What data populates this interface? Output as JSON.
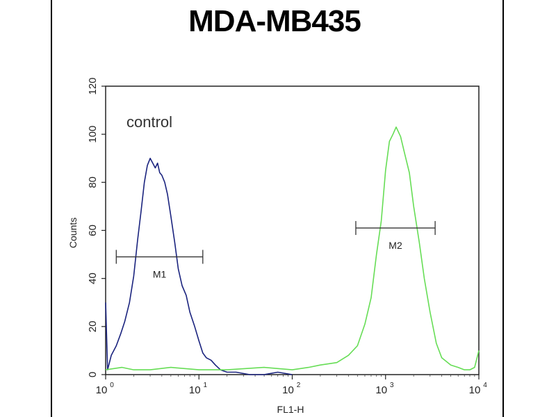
{
  "chart_data": {
    "type": "line",
    "title": "MDA-MB435",
    "xlabel": "FL1-H",
    "ylabel": "Counts",
    "x_scale": "log",
    "xlim": [
      1,
      10000
    ],
    "ylim": [
      0,
      120
    ],
    "x_ticks": [
      {
        "value": 1,
        "base": "10",
        "exp": "0"
      },
      {
        "value": 10,
        "base": "10",
        "exp": "1"
      },
      {
        "value": 100,
        "base": "10",
        "exp": "2"
      },
      {
        "value": 1000,
        "base": "10",
        "exp": "3"
      },
      {
        "value": 10000,
        "base": "10",
        "exp": "4"
      }
    ],
    "y_ticks": [
      "0",
      "20",
      "40",
      "60",
      "80",
      "100",
      "120"
    ],
    "annotation": "control",
    "series": [
      {
        "color": "#1a237e",
        "x": [
          1.0,
          1.05,
          1.15,
          1.3,
          1.45,
          1.6,
          1.8,
          2.0,
          2.2,
          2.4,
          2.6,
          2.8,
          3.0,
          3.2,
          3.4,
          3.6,
          3.8,
          4.0,
          4.3,
          4.6,
          5.0,
          5.5,
          6.0,
          6.6,
          7.3,
          8.0,
          9.0,
          10.0,
          11.0,
          12.0,
          13.5,
          15.0,
          17.0,
          20.0,
          25.0,
          35.0,
          50.0,
          70.0,
          100.0
        ],
        "y": [
          30,
          2,
          8,
          12,
          17,
          22,
          30,
          41,
          56,
          68,
          80,
          87,
          90,
          88,
          86,
          88,
          84,
          83,
          80,
          75,
          66,
          55,
          44,
          37,
          33,
          26,
          20,
          14,
          9,
          7,
          6,
          4,
          2,
          1,
          1,
          0,
          0,
          1,
          0
        ]
      },
      {
        "color": "#66dd55",
        "x": [
          1.0,
          1.5,
          2.0,
          3.0,
          5.0,
          10.0,
          20.0,
          50.0,
          100.0,
          150.0,
          200.0,
          300.0,
          400.0,
          500.0,
          600.0,
          700.0,
          800.0,
          900.0,
          1000.0,
          1100.0,
          1200.0,
          1300.0,
          1450.0,
          1600.0,
          1800.0,
          2000.0,
          2300.0,
          2600.0,
          3000.0,
          3500.0,
          4000.0,
          5000.0,
          6000.0,
          7000.0,
          8000.0,
          9000.0,
          10000.0
        ],
        "y": [
          2,
          3,
          2,
          2,
          3,
          2,
          2,
          3,
          2,
          3,
          4,
          5,
          8,
          12,
          21,
          32,
          50,
          64,
          85,
          97,
          100,
          103,
          99,
          92,
          84,
          70,
          55,
          40,
          26,
          13,
          7,
          4,
          3,
          2,
          2,
          3,
          10
        ]
      }
    ],
    "markers": [
      {
        "label": "M1",
        "x_start": 1.3,
        "x_end": 11.0,
        "y": 49
      },
      {
        "label": "M2",
        "x_start": 480,
        "x_end": 3400,
        "y": 61
      }
    ]
  }
}
